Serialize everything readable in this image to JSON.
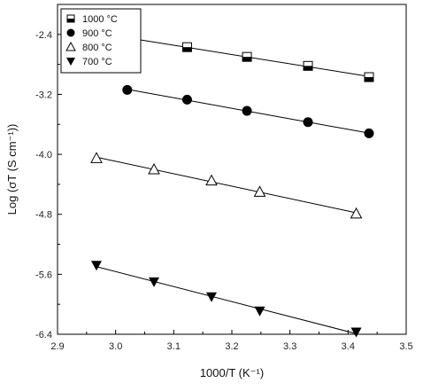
{
  "chart_data": {
    "type": "scatter",
    "xlabel": "1000/T (K⁻¹)",
    "ylabel": "Log (σT (S cm⁻¹))",
    "xlim": [
      2.9,
      3.5
    ],
    "ylim": [
      -6.4,
      -2.0
    ],
    "x_ticks": [
      2.9,
      3.0,
      3.1,
      3.2,
      3.3,
      3.4,
      3.5
    ],
    "x_tick_labels": [
      "2.9",
      "3.0",
      "3.1",
      "3.2",
      "3.3",
      "3.4",
      "3.5"
    ],
    "y_ticks": [
      -2.4,
      -3.2,
      -4.0,
      -4.8,
      -5.6,
      -6.4
    ],
    "y_tick_labels": [
      "-2.4",
      "-3.2",
      "-4.0",
      "-4.8",
      "-5.6",
      "-6.4"
    ],
    "grid": false,
    "legend_position": "top-left",
    "series": [
      {
        "name": "1000 °C",
        "marker": "half-filled-square",
        "x": [
          3.02,
          3.123,
          3.226,
          3.331,
          3.436
        ],
        "y": [
          -2.45,
          -2.57,
          -2.7,
          -2.82,
          -2.97
        ]
      },
      {
        "name": "900 °C",
        "marker": "filled-circle",
        "x": [
          3.02,
          3.123,
          3.226,
          3.331,
          3.436
        ],
        "y": [
          -3.14,
          -3.27,
          -3.42,
          -3.57,
          -3.72
        ]
      },
      {
        "name": "800 °C",
        "marker": "open-triangle",
        "x": [
          2.967,
          3.066,
          3.165,
          3.248,
          3.414
        ],
        "y": [
          -4.05,
          -4.2,
          -4.35,
          -4.5,
          -4.79
        ]
      },
      {
        "name": "700 °C",
        "marker": "filled-down-triangle",
        "x": [
          2.967,
          3.066,
          3.165,
          3.248,
          3.414
        ],
        "y": [
          -5.48,
          -5.7,
          -5.9,
          -6.09,
          -6.37
        ]
      }
    ]
  }
}
